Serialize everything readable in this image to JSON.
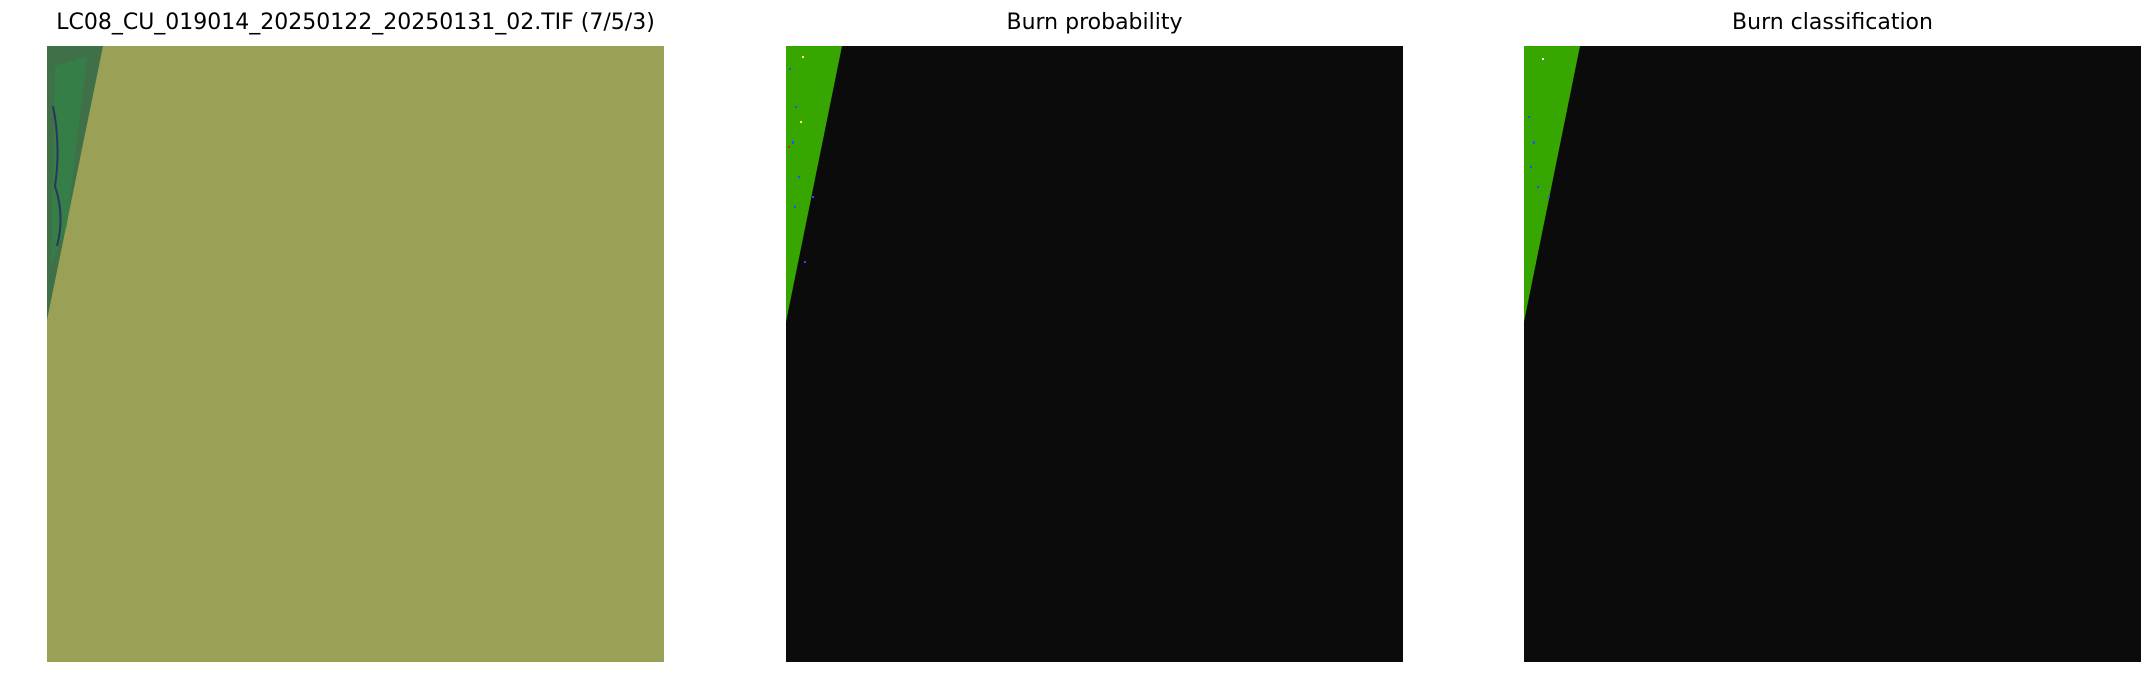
{
  "figure": {
    "panels": [
      {
        "title": "LC08_CU_019014_20250122_20250131_02.TIF (7/5/3)",
        "kind": "false-color composite",
        "colors": {
          "nodata_fill": "#9aa157",
          "scene_strip": "#3f7048",
          "scene_accent": "#2e8b45"
        }
      },
      {
        "title": "Burn probability",
        "kind": "probability map",
        "colors": {
          "background": "#0b0b0b",
          "valid_strip": "#38a600",
          "speckle_blue": "#2050ff",
          "speckle_yellow": "#ffff40",
          "speckle_red": "#e02020"
        }
      },
      {
        "title": "Burn classification",
        "kind": "classification map",
        "colors": {
          "background": "#0b0b0b",
          "valid_strip": "#38a600",
          "speckle_blue": "#2050ff"
        }
      }
    ]
  }
}
